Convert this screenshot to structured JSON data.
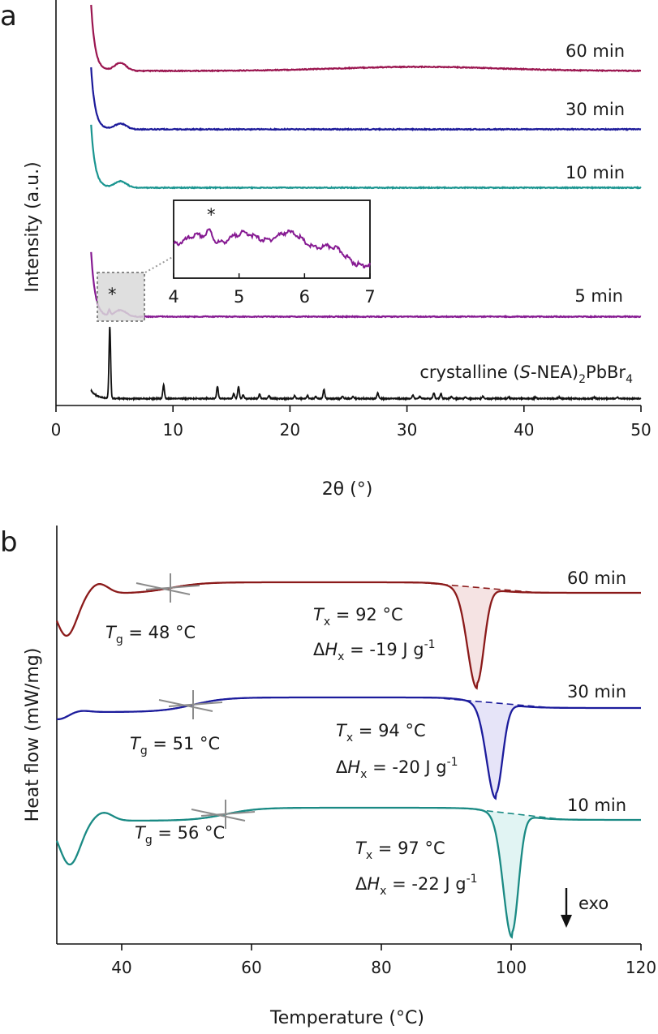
{
  "chart_data": [
    {
      "panel": "a",
      "type": "line",
      "xlabel": "2θ (°)",
      "ylabel": "Intensity (a.u.)",
      "xlim": [
        0,
        50
      ],
      "xticks": [
        0,
        10,
        20,
        30,
        40,
        50
      ],
      "y_ticks_shown": false,
      "series": [
        {
          "name": "60 min",
          "color": "#9b1650",
          "x_range": [
            3,
            50
          ],
          "description": "amorphous, sharp drop near 3–4°, weak bump near 5.5°, broad hump near 30°"
        },
        {
          "name": "30 min",
          "color": "#1c1a9a",
          "x_range": [
            3,
            50
          ],
          "description": "amorphous, sharp drop near 3–4°, weak bump near 5.5°"
        },
        {
          "name": "10 min",
          "color": "#1a9590",
          "x_range": [
            3,
            50
          ],
          "description": "amorphous, sharp drop near 3–4°, weak bump near 5.5°"
        },
        {
          "name": "5 min",
          "color": "#861a92",
          "x_range": [
            3,
            50
          ],
          "description": "amorphous, small peak at 4.55° marked *"
        },
        {
          "name": "crystalline (S-NEA)2PbBr4",
          "color": "#111111",
          "peaks_2theta": [
            4.6,
            9.2,
            13.8,
            15.2,
            15.6,
            16.0,
            17.4,
            18.2,
            20.4,
            21.5,
            22.2,
            22.9,
            24.5,
            25.4,
            27.5,
            30.5,
            31.1,
            32.3,
            32.9,
            33.8,
            35.0,
            36.5,
            38.7,
            41.0,
            43.0,
            46.0,
            48.0
          ],
          "peak_rel_intensity": [
            1.0,
            0.19,
            0.17,
            0.07,
            0.17,
            0.05,
            0.06,
            0.04,
            0.04,
            0.04,
            0.03,
            0.13,
            0.03,
            0.03,
            0.08,
            0.05,
            0.03,
            0.08,
            0.07,
            0.03,
            0.02,
            0.03,
            0.02,
            0.02,
            0.02,
            0.02,
            0.02
          ]
        }
      ],
      "labels": {
        "s60": "60 min",
        "s30": "30 min",
        "s10": "10 min",
        "s5": "5 min",
        "cryst_prefix": "crystalline (",
        "cryst_italic": "S",
        "cryst_mid": "-NEA)",
        "cryst_sub1": "2",
        "cryst_pb": "PbBr",
        "cryst_sub2": "4"
      },
      "annotations": [
        {
          "text": "*",
          "x": 4.55,
          "note": "peak marked in 5 min trace and inset"
        }
      ],
      "inset": {
        "series": "5 min",
        "xlim": [
          4,
          7
        ],
        "xticks": [
          4,
          5,
          6,
          7
        ],
        "star": "*",
        "star_x": 4.55
      }
    },
    {
      "panel": "b",
      "type": "line",
      "xlabel": "Temperature (°C)",
      "ylabel": "Heat flow (mW/mg)",
      "xlim": [
        30,
        120
      ],
      "xticks": [
        40,
        60,
        80,
        100,
        120
      ],
      "y_ticks_shown": false,
      "exo_label": "exo",
      "series": [
        {
          "name": "60 min",
          "color": "#8b1a1a",
          "fill": "#f5e3e3",
          "Tg": "48 °C",
          "Tx": "92 °C",
          "dHx": "-19 J g-1",
          "Tg_x": 47.5,
          "peak_x": 94.7,
          "exo_start": 86,
          "exo_end": 104
        },
        {
          "name": "30 min",
          "color": "#1c1c9c",
          "fill": "#e6e4f8",
          "Tg": "51 °C",
          "Tx": "94 °C",
          "dHx": "-20 J g-1",
          "Tg_x": 51.0,
          "peak_x": 97.6,
          "exo_start": 88,
          "exo_end": 106
        },
        {
          "name": "10 min",
          "color": "#1a8a84",
          "fill": "#e1f4f3",
          "Tg": "56 °C",
          "Tx": "97 °C",
          "dHx": "-22 J g-1",
          "Tg_x": 56.0,
          "peak_x": 100.1,
          "exo_start": 93,
          "exo_end": 108
        }
      ],
      "labels": {
        "s60": "60 min",
        "s30": "30 min",
        "s10": "10 min",
        "tg60": " = 48 °C",
        "tx60": " = 92 °C",
        "dh60": " = -19 J g",
        "tg30": " = 51 °C",
        "tx30": " = 94 °C",
        "dh30": " = -20 J g",
        "tg10": " = 56 °C",
        "tx10": " = 97 °C",
        "dh10": " = -22 J g",
        "T": "T",
        "g": "g",
        "x": "x",
        "Delta": "Δ",
        "H": "H",
        "sup": "-1"
      }
    }
  ],
  "panel_letters": [
    "a",
    "b"
  ]
}
